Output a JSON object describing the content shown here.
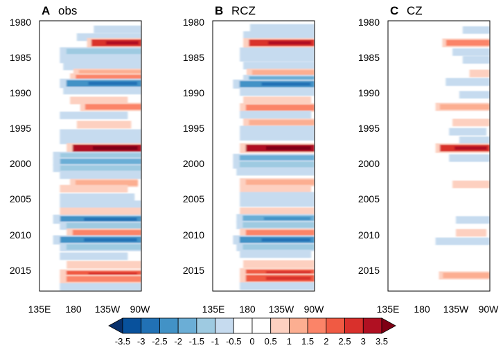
{
  "chart_data": [
    {
      "type": "heatmap",
      "panel_label": "A",
      "title": "obs",
      "ylim": [
        1980,
        2018
      ],
      "yticks": [
        1980,
        1985,
        1990,
        1995,
        2000,
        2005,
        2010,
        2015
      ],
      "xticks": [
        "135E",
        "180",
        "135W",
        "90W"
      ],
      "xlim_deg_east": [
        120,
        270
      ],
      "anomalies": [
        {
          "year": 1981.2,
          "lon_start": 200,
          "lon_end": 270,
          "value": -0.6
        },
        {
          "year": 1982.3,
          "lon_start": 175,
          "lon_end": 270,
          "value": -0.8
        },
        {
          "year": 1983.1,
          "lon_start": 190,
          "lon_end": 270,
          "value": 2.8
        },
        {
          "year": 1984.3,
          "lon_start": 150,
          "lon_end": 270,
          "value": -1.3
        },
        {
          "year": 1985.4,
          "lon_start": 150,
          "lon_end": 270,
          "value": -1.0
        },
        {
          "year": 1986.4,
          "lon_start": 155,
          "lon_end": 270,
          "value": -0.8
        },
        {
          "year": 1987.3,
          "lon_start": 170,
          "lon_end": 270,
          "value": 1.3
        },
        {
          "year": 1988.0,
          "lon_start": 165,
          "lon_end": 270,
          "value": 1.8
        },
        {
          "year": 1988.8,
          "lon_start": 150,
          "lon_end": 270,
          "value": -2.5
        },
        {
          "year": 1989.8,
          "lon_start": 155,
          "lon_end": 270,
          "value": -0.8
        },
        {
          "year": 1991.2,
          "lon_start": 165,
          "lon_end": 250,
          "value": 0.6
        },
        {
          "year": 1992.1,
          "lon_start": 180,
          "lon_end": 270,
          "value": 1.5
        },
        {
          "year": 1993.3,
          "lon_start": 150,
          "lon_end": 250,
          "value": -0.6
        },
        {
          "year": 1994.6,
          "lon_start": 175,
          "lon_end": 255,
          "value": 0.7
        },
        {
          "year": 1995.8,
          "lon_start": 150,
          "lon_end": 270,
          "value": -0.9
        },
        {
          "year": 1996.8,
          "lon_start": 150,
          "lon_end": 270,
          "value": -0.8
        },
        {
          "year": 1997.9,
          "lon_start": 160,
          "lon_end": 270,
          "value": 3.2
        },
        {
          "year": 1999.0,
          "lon_start": 140,
          "lon_end": 270,
          "value": -1.4
        },
        {
          "year": 1999.8,
          "lon_start": 140,
          "lon_end": 270,
          "value": -1.6
        },
        {
          "year": 2000.7,
          "lon_start": 140,
          "lon_end": 270,
          "value": -1.1
        },
        {
          "year": 2001.7,
          "lon_start": 150,
          "lon_end": 270,
          "value": -0.7
        },
        {
          "year": 2002.8,
          "lon_start": 165,
          "lon_end": 265,
          "value": 1.3
        },
        {
          "year": 2003.6,
          "lon_start": 150,
          "lon_end": 250,
          "value": 0.6
        },
        {
          "year": 2004.8,
          "lon_start": 150,
          "lon_end": 260,
          "value": -0.6
        },
        {
          "year": 2005.8,
          "lon_start": 150,
          "lon_end": 270,
          "value": -0.7
        },
        {
          "year": 2006.8,
          "lon_start": 150,
          "lon_end": 270,
          "value": 0.7
        },
        {
          "year": 2007.9,
          "lon_start": 140,
          "lon_end": 270,
          "value": -2.2
        },
        {
          "year": 2008.8,
          "lon_start": 150,
          "lon_end": 270,
          "value": -1.4
        },
        {
          "year": 2009.8,
          "lon_start": 160,
          "lon_end": 270,
          "value": 1.6
        },
        {
          "year": 2010.8,
          "lon_start": 140,
          "lon_end": 270,
          "value": -2.3
        },
        {
          "year": 2011.8,
          "lon_start": 150,
          "lon_end": 270,
          "value": -1.5
        },
        {
          "year": 2013.1,
          "lon_start": 150,
          "lon_end": 250,
          "value": -0.6
        },
        {
          "year": 2014.3,
          "lon_start": 160,
          "lon_end": 270,
          "value": 0.7
        },
        {
          "year": 2015.6,
          "lon_start": 150,
          "lon_end": 270,
          "value": 2.3
        },
        {
          "year": 2016.3,
          "lon_start": 150,
          "lon_end": 270,
          "value": 1.6
        },
        {
          "year": 2017.4,
          "lon_start": 150,
          "lon_end": 270,
          "value": -0.6
        }
      ]
    },
    {
      "type": "heatmap",
      "panel_label": "B",
      "title": "RCZ",
      "ylim": [
        1980,
        2018
      ],
      "yticks": [
        1980,
        1985,
        1990,
        1995,
        2000,
        2005,
        2010,
        2015
      ],
      "xticks": [
        "135E",
        "180",
        "135W",
        "90W"
      ],
      "xlim_deg_east": [
        120,
        270
      ],
      "anomalies": [
        {
          "year": 1981.0,
          "lon_start": 175,
          "lon_end": 270,
          "value": -0.8
        },
        {
          "year": 1982.0,
          "lon_start": 165,
          "lon_end": 270,
          "value": -0.6
        },
        {
          "year": 1983.1,
          "lon_start": 165,
          "lon_end": 270,
          "value": 2.6
        },
        {
          "year": 1984.3,
          "lon_start": 160,
          "lon_end": 270,
          "value": -0.9
        },
        {
          "year": 1985.2,
          "lon_start": 160,
          "lon_end": 270,
          "value": -0.7
        },
        {
          "year": 1986.3,
          "lon_start": 165,
          "lon_end": 270,
          "value": -0.6
        },
        {
          "year": 1987.3,
          "lon_start": 170,
          "lon_end": 270,
          "value": 1.2
        },
        {
          "year": 1988.2,
          "lon_start": 165,
          "lon_end": 270,
          "value": -1.6
        },
        {
          "year": 1988.9,
          "lon_start": 150,
          "lon_end": 270,
          "value": -2.2
        },
        {
          "year": 1990.0,
          "lon_start": 160,
          "lon_end": 270,
          "value": -0.9
        },
        {
          "year": 1991.2,
          "lon_start": 165,
          "lon_end": 265,
          "value": 0.8
        },
        {
          "year": 1992.2,
          "lon_start": 160,
          "lon_end": 270,
          "value": 1.8
        },
        {
          "year": 1993.2,
          "lon_start": 160,
          "lon_end": 265,
          "value": -0.7
        },
        {
          "year": 1994.3,
          "lon_start": 165,
          "lon_end": 270,
          "value": 1.0
        },
        {
          "year": 1995.3,
          "lon_start": 160,
          "lon_end": 270,
          "value": -0.8
        },
        {
          "year": 1996.3,
          "lon_start": 160,
          "lon_end": 270,
          "value": -0.7
        },
        {
          "year": 1997.9,
          "lon_start": 160,
          "lon_end": 270,
          "value": 3.3
        },
        {
          "year": 1999.3,
          "lon_start": 150,
          "lon_end": 270,
          "value": -1.6
        },
        {
          "year": 2000.2,
          "lon_start": 150,
          "lon_end": 270,
          "value": -1.5
        },
        {
          "year": 2001.2,
          "lon_start": 155,
          "lon_end": 270,
          "value": -1.0
        },
        {
          "year": 2002.7,
          "lon_start": 160,
          "lon_end": 270,
          "value": 1.2
        },
        {
          "year": 2003.6,
          "lon_start": 160,
          "lon_end": 265,
          "value": 0.6
        },
        {
          "year": 2004.6,
          "lon_start": 160,
          "lon_end": 270,
          "value": -0.7
        },
        {
          "year": 2005.6,
          "lon_start": 160,
          "lon_end": 270,
          "value": -0.8
        },
        {
          "year": 2006.8,
          "lon_start": 160,
          "lon_end": 270,
          "value": 0.9
        },
        {
          "year": 2007.8,
          "lon_start": 155,
          "lon_end": 270,
          "value": -2.0
        },
        {
          "year": 2008.7,
          "lon_start": 155,
          "lon_end": 270,
          "value": -1.4
        },
        {
          "year": 2009.8,
          "lon_start": 160,
          "lon_end": 270,
          "value": 1.6
        },
        {
          "year": 2010.8,
          "lon_start": 150,
          "lon_end": 270,
          "value": -2.2
        },
        {
          "year": 2011.8,
          "lon_start": 155,
          "lon_end": 270,
          "value": -1.3
        },
        {
          "year": 2012.8,
          "lon_start": 160,
          "lon_end": 265,
          "value": -0.7
        },
        {
          "year": 2014.2,
          "lon_start": 165,
          "lon_end": 270,
          "value": 0.8
        },
        {
          "year": 2015.4,
          "lon_start": 160,
          "lon_end": 270,
          "value": 2.0
        },
        {
          "year": 2016.2,
          "lon_start": 160,
          "lon_end": 270,
          "value": 2.4
        },
        {
          "year": 2017.3,
          "lon_start": 160,
          "lon_end": 270,
          "value": -0.7
        }
      ]
    },
    {
      "type": "heatmap",
      "panel_label": "C",
      "title": "CZ",
      "ylim": [
        1980,
        2018
      ],
      "yticks": [
        1980,
        1985,
        1990,
        1995,
        2000,
        2005,
        2010,
        2015
      ],
      "xticks": [
        "135E",
        "180",
        "135W",
        "90W"
      ],
      "xlim_deg_east": [
        120,
        270
      ],
      "anomalies": [
        {
          "year": 1981.3,
          "lon_start": 230,
          "lon_end": 270,
          "value": -0.6
        },
        {
          "year": 1983.1,
          "lon_start": 200,
          "lon_end": 270,
          "value": 1.8
        },
        {
          "year": 1984.4,
          "lon_start": 215,
          "lon_end": 270,
          "value": -0.6
        },
        {
          "year": 1985.5,
          "lon_start": 230,
          "lon_end": 270,
          "value": -0.6
        },
        {
          "year": 1987.4,
          "lon_start": 240,
          "lon_end": 270,
          "value": 0.6
        },
        {
          "year": 1988.6,
          "lon_start": 205,
          "lon_end": 270,
          "value": -1.0
        },
        {
          "year": 1990.4,
          "lon_start": 225,
          "lon_end": 270,
          "value": -0.6
        },
        {
          "year": 1992.1,
          "lon_start": 190,
          "lon_end": 270,
          "value": 1.2
        },
        {
          "year": 1994.3,
          "lon_start": 215,
          "lon_end": 270,
          "value": 0.6
        },
        {
          "year": 1995.6,
          "lon_start": 210,
          "lon_end": 265,
          "value": -0.6
        },
        {
          "year": 1996.8,
          "lon_start": 225,
          "lon_end": 270,
          "value": -0.6
        },
        {
          "year": 1997.9,
          "lon_start": 190,
          "lon_end": 270,
          "value": 2.7
        },
        {
          "year": 1999.3,
          "lon_start": 210,
          "lon_end": 270,
          "value": -0.6
        },
        {
          "year": 2003.0,
          "lon_start": 215,
          "lon_end": 270,
          "value": 0.6
        },
        {
          "year": 2008.0,
          "lon_start": 220,
          "lon_end": 270,
          "value": -0.6
        },
        {
          "year": 2009.8,
          "lon_start": 220,
          "lon_end": 265,
          "value": 0.6
        },
        {
          "year": 2011.0,
          "lon_start": 190,
          "lon_end": 270,
          "value": -0.6
        },
        {
          "year": 2015.8,
          "lon_start": 195,
          "lon_end": 270,
          "value": 1.2
        }
      ]
    }
  ],
  "colorbar": {
    "levels": [
      "-3.5",
      "-3",
      "-2.5",
      "-2",
      "-1.5",
      "-1",
      "-0.5",
      "0",
      "0.5",
      "1",
      "1.5",
      "2",
      "2.5",
      "3",
      "3.5"
    ],
    "colors": [
      "#08306b",
      "#08519c",
      "#2171b5",
      "#4292c6",
      "#6baed6",
      "#9ecae1",
      "#c6dbef",
      "#ffffff",
      "#ffffff",
      "#fdd0c0",
      "#fcae91",
      "#fb8468",
      "#f05a43",
      "#d9302c",
      "#b01022",
      "#7f0014"
    ]
  }
}
